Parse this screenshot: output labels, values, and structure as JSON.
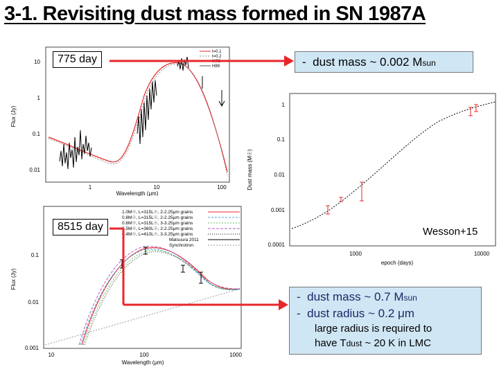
{
  "title": "3-1. Revisiting dust mass formed in SN 1987A",
  "panel_775": {
    "label": "775 day",
    "ylabel": "Flux (Jy)",
    "xlabel": "Wavelength (μm)",
    "yticks": [
      "10",
      "1",
      "0.1",
      "0.01"
    ],
    "xticks": [
      "1",
      "10",
      "100"
    ],
    "legend": [
      "t=0.1",
      "t=0.2",
      "W03",
      "H89"
    ]
  },
  "panel_8515": {
    "label": "8515 day",
    "ylabel": "Flux (Jy)",
    "xlabel": "Wavelength (μm)",
    "yticks": [
      "0.1",
      "0.01",
      "0.001"
    ],
    "xticks": [
      "10",
      "100",
      "1000"
    ],
    "legend": [
      "1.0M☉, L=315L☉, 2-2.25μm grains",
      "0.8M☉, L=315L☉, 2-2.25μm grains",
      "0.6M☉, L=315L☉, 3-3.25μm grains",
      "0.5M☉, L=360L☉, 2-2.25μm grains",
      "0.4M☉, L=410L☉, 3-3.25μm grains",
      "Matsuura 2011",
      "Synchrotron"
    ]
  },
  "panel_mass": {
    "ylabel": "Dust mass (M☉)",
    "xlabel": "epoch (days)",
    "yticks": [
      "1",
      "0.1",
      "0.01",
      "0.001",
      "0.0001"
    ],
    "xticks": [
      "1000",
      "10000"
    ],
    "annotation": "Wesson+15"
  },
  "callout_top": {
    "dash": "-",
    "text": "dust mass ~ 0.002 M",
    "sub": "sun"
  },
  "callout_bottom": {
    "line1": {
      "dash": "-",
      "text": "dust mass ~ 0.7 M",
      "sub": "sun"
    },
    "line2": {
      "dash": "-",
      "text": "dust radius ~ 0.2 μm"
    },
    "line3": "large radius is required to",
    "line4_pre": "have T",
    "line4_sub": "dust",
    "line4_post": " ~ 20 K in LMC"
  },
  "colors": {
    "red": "#e8262a",
    "blue_box": "#cfe6f4",
    "dark_text": "#1a2a66"
  }
}
